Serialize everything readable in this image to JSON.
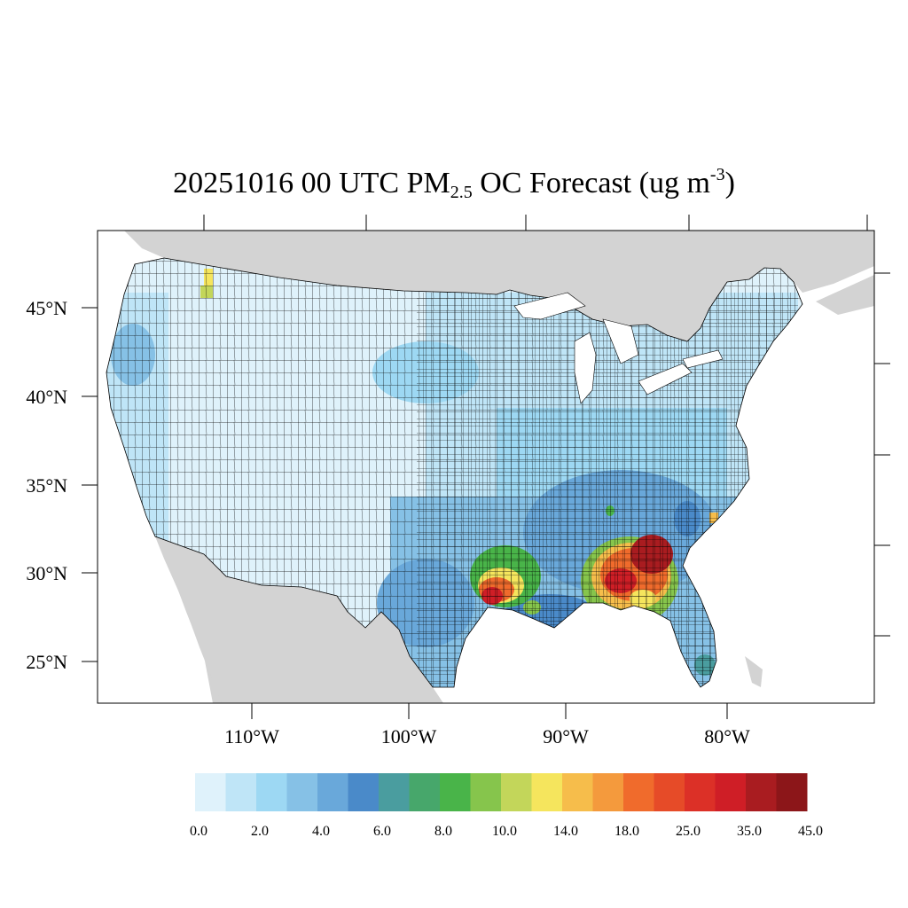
{
  "title": {
    "prefix": "20251016 00 UTC PM",
    "subscript": "2.5",
    "middle": " OC Forecast (ug m",
    "superscript": "-3",
    "suffix": ")"
  },
  "axes": {
    "lat_labels": [
      "45°N",
      "40°N",
      "35°N",
      "30°N",
      "25°N"
    ],
    "lon_labels": [
      "110°W",
      "100°W",
      "90°W",
      "80°W"
    ]
  },
  "colorbar": {
    "colors": [
      "#dff2fb",
      "#bfe5f7",
      "#9dd8f3",
      "#86c1e6",
      "#69a8da",
      "#4a8ac9",
      "#4a9d9f",
      "#47a76b",
      "#49b449",
      "#86c54c",
      "#c3d65a",
      "#f5e55d",
      "#f6bd4b",
      "#f49a3d",
      "#f06b2c",
      "#e64b28",
      "#dc3027",
      "#cf1e26",
      "#a91c20",
      "#8c1619"
    ],
    "labels": [
      "0.0",
      "2.0",
      "4.0",
      "6.0",
      "8.0",
      "10.0",
      "14.0",
      "18.0",
      "25.0",
      "35.0",
      "45.0"
    ]
  },
  "colors": {
    "land_outside_domain": "#d3d3d3",
    "water": "#ffffff",
    "county_border": "#000000"
  }
}
